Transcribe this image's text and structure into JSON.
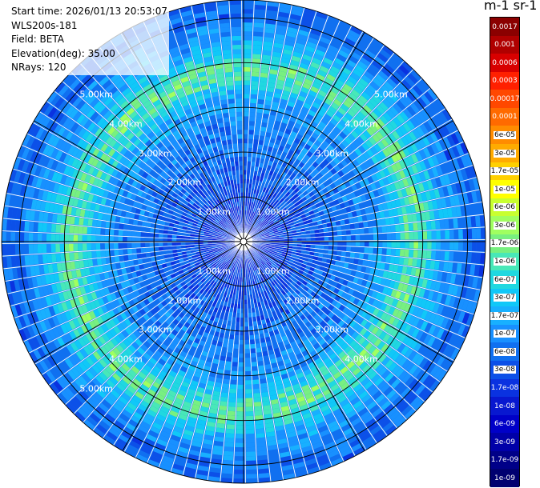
{
  "info": {
    "start_time": "Start time: 2026/01/13 20:53:07",
    "instrument": "WLS200s-181",
    "field": "Field: BETA",
    "elevation": "Elevation(deg): 35.00",
    "nrays": "NRays: 120"
  },
  "colorbar": {
    "title": "m-1 sr-1",
    "levels": [
      "0.0017",
      "0.001",
      "0.0006",
      "0.0003",
      "0.00017",
      "0.0001",
      "6e-05",
      "3e-05",
      "1.7e-05",
      "1e-05",
      "6e-06",
      "3e-06",
      "1.7e-06",
      "1e-06",
      "6e-07",
      "3e-07",
      "1.7e-07",
      "1e-07",
      "6e-08",
      "3e-08",
      "1.7e-08",
      "1e-08",
      "6e-09",
      "3e-09",
      "1.7e-09",
      "1e-09"
    ],
    "colors": [
      "#8b0000",
      "#b00000",
      "#d80000",
      "#ff2000",
      "#ff4800",
      "#ff6a00",
      "#ff8c00",
      "#ffab00",
      "#ffd000",
      "#ffff00",
      "#c8ff30",
      "#a0ff60",
      "#78f080",
      "#48e8b8",
      "#20d8e0",
      "#10c8f8",
      "#18b0ff",
      "#1890ff",
      "#1070f0",
      "#0c50e8",
      "#0a32e0",
      "#0818d0",
      "#0000c8",
      "#0000a8",
      "#000088",
      "#000070"
    ]
  },
  "ring_labels": [
    "1.00km",
    "2.00km",
    "3.00km",
    "4.00km",
    "5.00km"
  ],
  "plot": {
    "n_rays": 120,
    "n_gates": 54,
    "max_range_km": 5.4,
    "ring_ranges_km": [
      1,
      2,
      3,
      4,
      5,
      5.4
    ],
    "spokes_deg": [
      0,
      30,
      60,
      90,
      120,
      150,
      180,
      210,
      240,
      270,
      300,
      330
    ]
  }
}
